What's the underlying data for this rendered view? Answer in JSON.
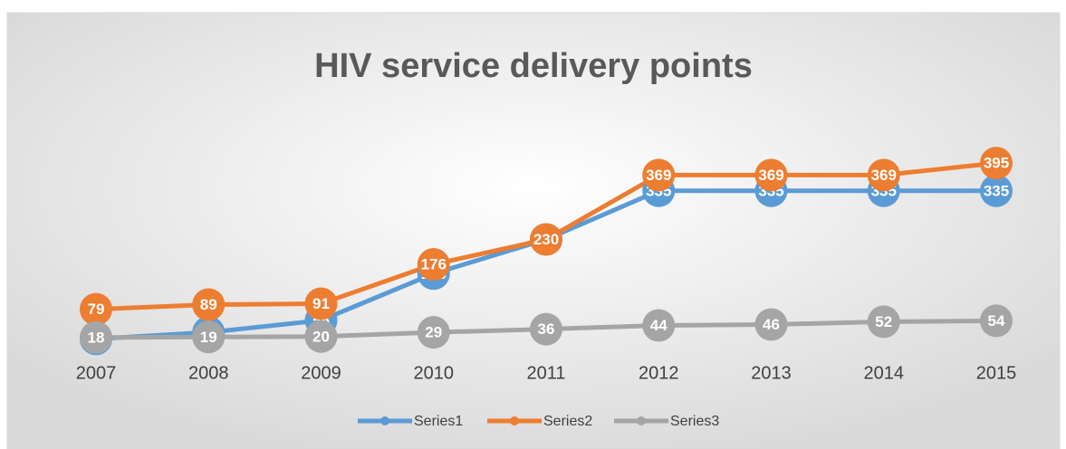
{
  "chart_data": {
    "type": "line",
    "title": "HIV service delivery points",
    "categories": [
      "2007",
      "2008",
      "2009",
      "2010",
      "2011",
      "2012",
      "2013",
      "2014",
      "2015"
    ],
    "series": [
      {
        "name": "Series1",
        "color": "#5b9bd5",
        "values": [
          15,
          29,
          55,
          156,
          230,
          335,
          335,
          335,
          335
        ]
      },
      {
        "name": "Series2",
        "color": "#ed7d31",
        "values": [
          79,
          89,
          91,
          176,
          230,
          369,
          369,
          369,
          395
        ]
      },
      {
        "name": "Series3",
        "color": "#a5a5a5",
        "values": [
          18,
          19,
          20,
          29,
          36,
          44,
          46,
          52,
          54
        ]
      }
    ],
    "ylim": [
      0,
      450
    ],
    "legend": "bottom"
  }
}
